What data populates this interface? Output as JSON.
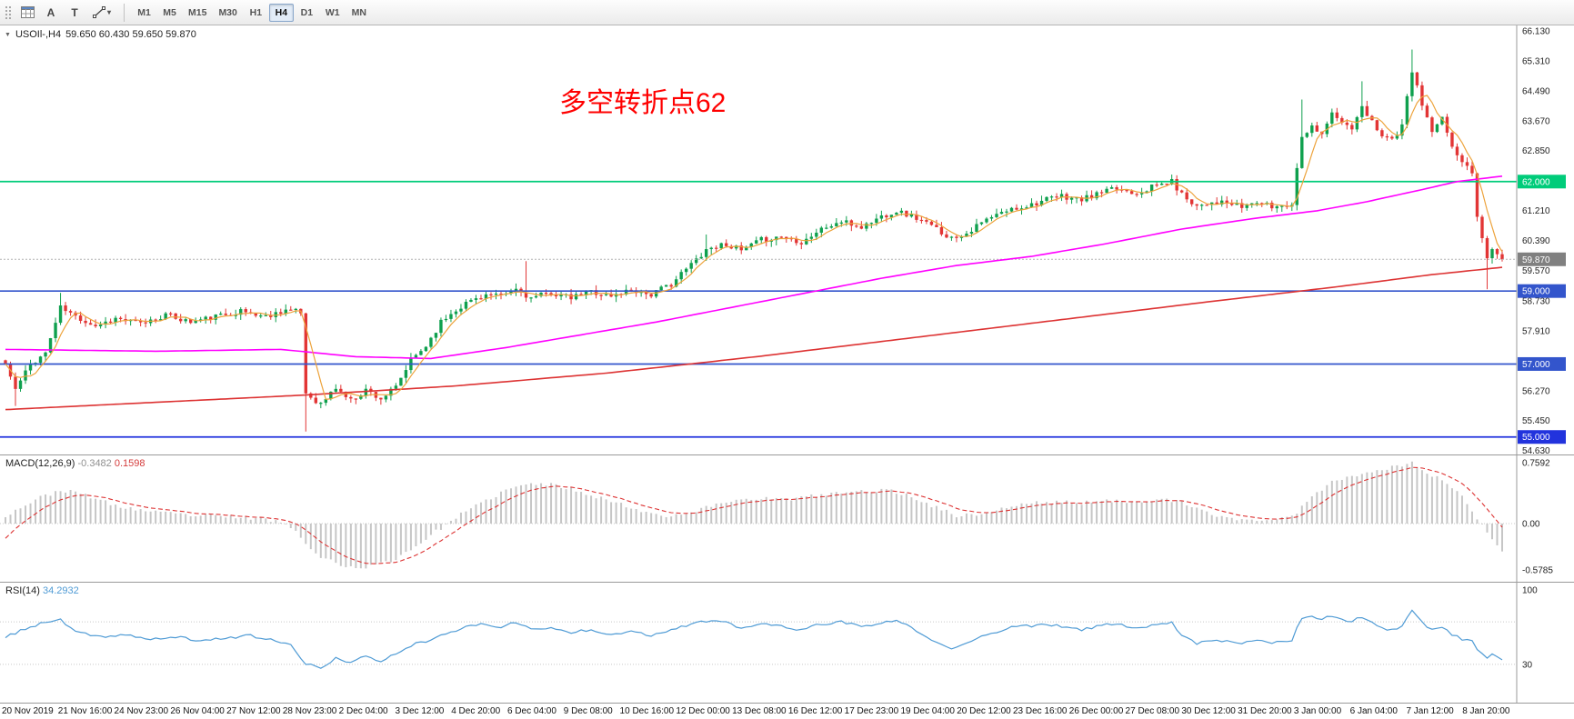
{
  "toolbar": {
    "a_label": "A",
    "t_label": "T",
    "timeframes": [
      "M1",
      "M5",
      "M15",
      "M30",
      "H1",
      "H4",
      "D1",
      "W1",
      "MN"
    ],
    "active_timeframe": "H4"
  },
  "chart_data": {
    "type": "candlestick",
    "symbol_title": "USOIl-,H4",
    "ohlc_display": "59.650 60.430 59.650 59.870",
    "annotation": {
      "text": "多空转折点62",
      "color": "#ff0000"
    },
    "price_axis": {
      "max": 66.28,
      "min": 54.52,
      "ticks": [
        "66.130",
        "65.310",
        "64.490",
        "63.670",
        "62.850",
        "61.210",
        "60.390",
        "59.570",
        "58.730",
        "57.910",
        "56.270",
        "55.450",
        "54.630"
      ]
    },
    "hlines": [
      {
        "price": 62.0,
        "label": "62.000",
        "color": "#00cc7a"
      },
      {
        "price": 59.0,
        "label": "59.000",
        "color": "#3355cc"
      },
      {
        "price": 57.0,
        "label": "57.000",
        "color": "#3355cc"
      },
      {
        "price": 55.0,
        "label": "55.000",
        "color": "#2233dd"
      }
    ],
    "bid": {
      "price": 59.87,
      "label": "59.870",
      "color": "#808080"
    },
    "candles": {
      "count": 300,
      "up_color": "#0fa04e",
      "down_color": "#e23535",
      "close_keyframes": [
        [
          0,
          57.0
        ],
        [
          2,
          56.3
        ],
        [
          5,
          57.0
        ],
        [
          8,
          57.3
        ],
        [
          11,
          58.55
        ],
        [
          14,
          58.3
        ],
        [
          18,
          58.05
        ],
        [
          22,
          58.25
        ],
        [
          27,
          58.1
        ],
        [
          32,
          58.35
        ],
        [
          37,
          58.15
        ],
        [
          42,
          58.3
        ],
        [
          47,
          58.45
        ],
        [
          52,
          58.3
        ],
        [
          56,
          58.5
        ],
        [
          59,
          58.4
        ],
        [
          60,
          56.2
        ],
        [
          63,
          55.9
        ],
        [
          66,
          56.35
        ],
        [
          69,
          56.0
        ],
        [
          72,
          56.3
        ],
        [
          75,
          56.05
        ],
        [
          78,
          56.35
        ],
        [
          81,
          57.1
        ],
        [
          84,
          57.5
        ],
        [
          87,
          58.15
        ],
        [
          90,
          58.5
        ],
        [
          93,
          58.75
        ],
        [
          96,
          58.9
        ],
        [
          99,
          58.85
        ],
        [
          102,
          59.05
        ],
        [
          105,
          58.8
        ],
        [
          109,
          58.95
        ],
        [
          113,
          58.8
        ],
        [
          117,
          59.0
        ],
        [
          121,
          58.85
        ],
        [
          125,
          59.05
        ],
        [
          129,
          58.9
        ],
        [
          133,
          59.2
        ],
        [
          136,
          59.6
        ],
        [
          140,
          60.15
        ],
        [
          144,
          60.3
        ],
        [
          147,
          60.1
        ],
        [
          151,
          60.4
        ],
        [
          155,
          60.5
        ],
        [
          159,
          60.35
        ],
        [
          163,
          60.7
        ],
        [
          167,
          60.9
        ],
        [
          171,
          60.75
        ],
        [
          175,
          61.05
        ],
        [
          178,
          61.2
        ],
        [
          182,
          61.0
        ],
        [
          186,
          60.7
        ],
        [
          189,
          60.45
        ],
        [
          192,
          60.6
        ],
        [
          196,
          60.95
        ],
        [
          200,
          61.2
        ],
        [
          204,
          61.35
        ],
        [
          208,
          61.5
        ],
        [
          211,
          61.6
        ],
        [
          215,
          61.5
        ],
        [
          219,
          61.7
        ],
        [
          222,
          61.8
        ],
        [
          226,
          61.7
        ],
        [
          230,
          61.9
        ],
        [
          233,
          62.0
        ],
        [
          235,
          61.65
        ],
        [
          238,
          61.35
        ],
        [
          241,
          61.45
        ],
        [
          244,
          61.4
        ],
        [
          247,
          61.3
        ],
        [
          250,
          61.45
        ],
        [
          253,
          61.3
        ],
        [
          255,
          61.35
        ],
        [
          257,
          61.4
        ],
        [
          259,
          63.3
        ],
        [
          261,
          63.5
        ],
        [
          263,
          63.35
        ],
        [
          265,
          63.85
        ],
        [
          267,
          63.6
        ],
        [
          269,
          63.45
        ],
        [
          271,
          64.0
        ],
        [
          273,
          63.65
        ],
        [
          275,
          63.3
        ],
        [
          277,
          63.15
        ],
        [
          279,
          63.5
        ],
        [
          281,
          65.05
        ],
        [
          283,
          64.1
        ],
        [
          285,
          63.35
        ],
        [
          287,
          63.7
        ],
        [
          289,
          63.0
        ],
        [
          291,
          62.5
        ],
        [
          293,
          62.3
        ],
        [
          294,
          61.0
        ],
        [
          296,
          59.9
        ],
        [
          297,
          60.15
        ],
        [
          299,
          59.87
        ]
      ],
      "spikes": [
        {
          "i": 2,
          "low": 55.85
        },
        {
          "i": 11,
          "high": 58.95
        },
        {
          "i": 60,
          "low": 55.15
        },
        {
          "i": 104,
          "high": 59.82
        },
        {
          "i": 140,
          "high": 60.55
        },
        {
          "i": 259,
          "high": 64.25
        },
        {
          "i": 271,
          "high": 64.75
        },
        {
          "i": 281,
          "high": 65.62
        },
        {
          "i": 296,
          "low": 59.05
        }
      ]
    },
    "moving_averages": {
      "fast_color": "#eda33c",
      "mid_color": "#ff00ff",
      "slow_color": "#dd3333",
      "mid_keyframes": [
        [
          0,
          57.4
        ],
        [
          30,
          57.35
        ],
        [
          55,
          57.4
        ],
        [
          70,
          57.2
        ],
        [
          85,
          57.15
        ],
        [
          100,
          57.45
        ],
        [
          115,
          57.8
        ],
        [
          130,
          58.15
        ],
        [
          145,
          58.55
        ],
        [
          160,
          58.95
        ],
        [
          175,
          59.35
        ],
        [
          190,
          59.7
        ],
        [
          205,
          59.95
        ],
        [
          220,
          60.3
        ],
        [
          235,
          60.7
        ],
        [
          250,
          61.0
        ],
        [
          262,
          61.2
        ],
        [
          272,
          61.45
        ],
        [
          282,
          61.75
        ],
        [
          290,
          62.0
        ],
        [
          299,
          62.15
        ]
      ],
      "slow_keyframes": [
        [
          0,
          55.75
        ],
        [
          30,
          55.95
        ],
        [
          60,
          56.15
        ],
        [
          90,
          56.4
        ],
        [
          120,
          56.75
        ],
        [
          150,
          57.2
        ],
        [
          180,
          57.7
        ],
        [
          210,
          58.2
        ],
        [
          240,
          58.7
        ],
        [
          265,
          59.1
        ],
        [
          285,
          59.45
        ],
        [
          299,
          59.65
        ]
      ]
    },
    "macd": {
      "name": "MACD(12,26,9)",
      "value_main": "-0.3482",
      "value_signal": "0.1598",
      "hist_color": "#c6c6c6",
      "signal_color": "#dd3333",
      "axis_labels": [
        {
          "text": "0.7592",
          "value": 0.7592
        },
        {
          "text": "0.00",
          "value": 0
        },
        {
          "text": "-0.5785",
          "value": -0.5785
        }
      ],
      "keyframes": [
        [
          0,
          0.1
        ],
        [
          6,
          0.3
        ],
        [
          11,
          0.42
        ],
        [
          16,
          0.36
        ],
        [
          22,
          0.22
        ],
        [
          30,
          0.14
        ],
        [
          38,
          0.1
        ],
        [
          46,
          0.08
        ],
        [
          54,
          0.04
        ],
        [
          58,
          -0.08
        ],
        [
          62,
          -0.38
        ],
        [
          66,
          -0.5
        ],
        [
          70,
          -0.56
        ],
        [
          74,
          -0.52
        ],
        [
          78,
          -0.44
        ],
        [
          82,
          -0.28
        ],
        [
          86,
          -0.1
        ],
        [
          90,
          0.08
        ],
        [
          95,
          0.25
        ],
        [
          100,
          0.42
        ],
        [
          105,
          0.5
        ],
        [
          110,
          0.48
        ],
        [
          115,
          0.4
        ],
        [
          120,
          0.3
        ],
        [
          126,
          0.18
        ],
        [
          131,
          0.1
        ],
        [
          136,
          0.12
        ],
        [
          141,
          0.22
        ],
        [
          146,
          0.3
        ],
        [
          151,
          0.32
        ],
        [
          156,
          0.3
        ],
        [
          161,
          0.34
        ],
        [
          166,
          0.38
        ],
        [
          171,
          0.4
        ],
        [
          176,
          0.42
        ],
        [
          181,
          0.34
        ],
        [
          186,
          0.2
        ],
        [
          190,
          0.1
        ],
        [
          195,
          0.12
        ],
        [
          200,
          0.2
        ],
        [
          205,
          0.26
        ],
        [
          210,
          0.27
        ],
        [
          215,
          0.26
        ],
        [
          220,
          0.28
        ],
        [
          225,
          0.28
        ],
        [
          230,
          0.3
        ],
        [
          234,
          0.28
        ],
        [
          238,
          0.18
        ],
        [
          243,
          0.08
        ],
        [
          248,
          0.05
        ],
        [
          253,
          0.04
        ],
        [
          257,
          0.08
        ],
        [
          261,
          0.35
        ],
        [
          265,
          0.52
        ],
        [
          269,
          0.6
        ],
        [
          273,
          0.66
        ],
        [
          277,
          0.7
        ],
        [
          281,
          0.76
        ],
        [
          284,
          0.62
        ],
        [
          287,
          0.55
        ],
        [
          290,
          0.42
        ],
        [
          293,
          0.15
        ],
        [
          296,
          -0.12
        ],
        [
          299,
          -0.3482
        ]
      ]
    },
    "rsi": {
      "name": "RSI(14)",
      "value": "34.2932",
      "line_color": "#4f9bd5",
      "levels": [
        70,
        30
      ],
      "axis_labels": [
        {
          "text": "100",
          "value": 100
        },
        {
          "text": "30",
          "value": 30
        }
      ],
      "keyframes": [
        [
          0,
          55
        ],
        [
          3,
          62
        ],
        [
          7,
          68
        ],
        [
          11,
          72
        ],
        [
          14,
          60
        ],
        [
          19,
          56
        ],
        [
          24,
          58
        ],
        [
          29,
          53
        ],
        [
          34,
          56
        ],
        [
          39,
          52
        ],
        [
          44,
          55
        ],
        [
          49,
          57
        ],
        [
          53,
          53
        ],
        [
          57,
          48
        ],
        [
          60,
          30
        ],
        [
          63,
          27
        ],
        [
          66,
          36
        ],
        [
          69,
          31
        ],
        [
          72,
          38
        ],
        [
          75,
          33
        ],
        [
          78,
          40
        ],
        [
          81,
          48
        ],
        [
          84,
          52
        ],
        [
          87,
          58
        ],
        [
          90,
          62
        ],
        [
          93,
          66
        ],
        [
          96,
          68
        ],
        [
          99,
          65
        ],
        [
          102,
          70
        ],
        [
          105,
          63
        ],
        [
          109,
          64
        ],
        [
          113,
          60
        ],
        [
          117,
          63
        ],
        [
          121,
          58
        ],
        [
          125,
          62
        ],
        [
          129,
          57
        ],
        [
          133,
          63
        ],
        [
          137,
          68
        ],
        [
          141,
          71
        ],
        [
          144,
          69
        ],
        [
          147,
          64
        ],
        [
          151,
          68
        ],
        [
          155,
          66
        ],
        [
          159,
          62
        ],
        [
          163,
          68
        ],
        [
          167,
          70
        ],
        [
          171,
          65
        ],
        [
          175,
          69
        ],
        [
          178,
          71
        ],
        [
          182,
          62
        ],
        [
          186,
          50
        ],
        [
          189,
          44
        ],
        [
          192,
          50
        ],
        [
          196,
          58
        ],
        [
          200,
          64
        ],
        [
          204,
          66
        ],
        [
          208,
          67
        ],
        [
          211,
          66
        ],
        [
          215,
          62
        ],
        [
          219,
          67
        ],
        [
          222,
          68
        ],
        [
          226,
          64
        ],
        [
          230,
          68
        ],
        [
          233,
          69
        ],
        [
          235,
          58
        ],
        [
          238,
          50
        ],
        [
          241,
          53
        ],
        [
          244,
          52
        ],
        [
          247,
          49
        ],
        [
          250,
          54
        ],
        [
          253,
          50
        ],
        [
          255,
          52
        ],
        [
          257,
          53
        ],
        [
          259,
          74
        ],
        [
          261,
          76
        ],
        [
          263,
          72
        ],
        [
          265,
          76
        ],
        [
          267,
          72
        ],
        [
          269,
          70
        ],
        [
          271,
          75
        ],
        [
          273,
          70
        ],
        [
          275,
          64
        ],
        [
          277,
          62
        ],
        [
          279,
          67
        ],
        [
          281,
          80
        ],
        [
          283,
          70
        ],
        [
          285,
          62
        ],
        [
          287,
          66
        ],
        [
          289,
          58
        ],
        [
          291,
          54
        ],
        [
          293,
          52
        ],
        [
          294,
          45
        ],
        [
          296,
          36
        ],
        [
          297,
          40
        ],
        [
          299,
          34.29
        ]
      ]
    },
    "time_axis_labels": [
      "20 Nov 2019",
      "21 Nov 16:00",
      "24 Nov 23:00",
      "26 Nov 04:00",
      "27 Nov 12:00",
      "28 Nov 23:00",
      "2 Dec 04:00",
      "3 Dec 12:00",
      "4 Dec 20:00",
      "6 Dec 04:00",
      "9 Dec 08:00",
      "10 Dec 16:00",
      "12 Dec 00:00",
      "13 Dec 08:00",
      "16 Dec 12:00",
      "17 Dec 23:00",
      "19 Dec 04:00",
      "20 Dec 12:00",
      "23 Dec 16:00",
      "26 Dec 00:00",
      "27 Dec 08:00",
      "30 Dec 12:00",
      "31 Dec 20:00",
      "3 Jan 00:00",
      "6 Jan 04:00",
      "7 Jan 12:00",
      "8 Jan 20:00"
    ]
  }
}
